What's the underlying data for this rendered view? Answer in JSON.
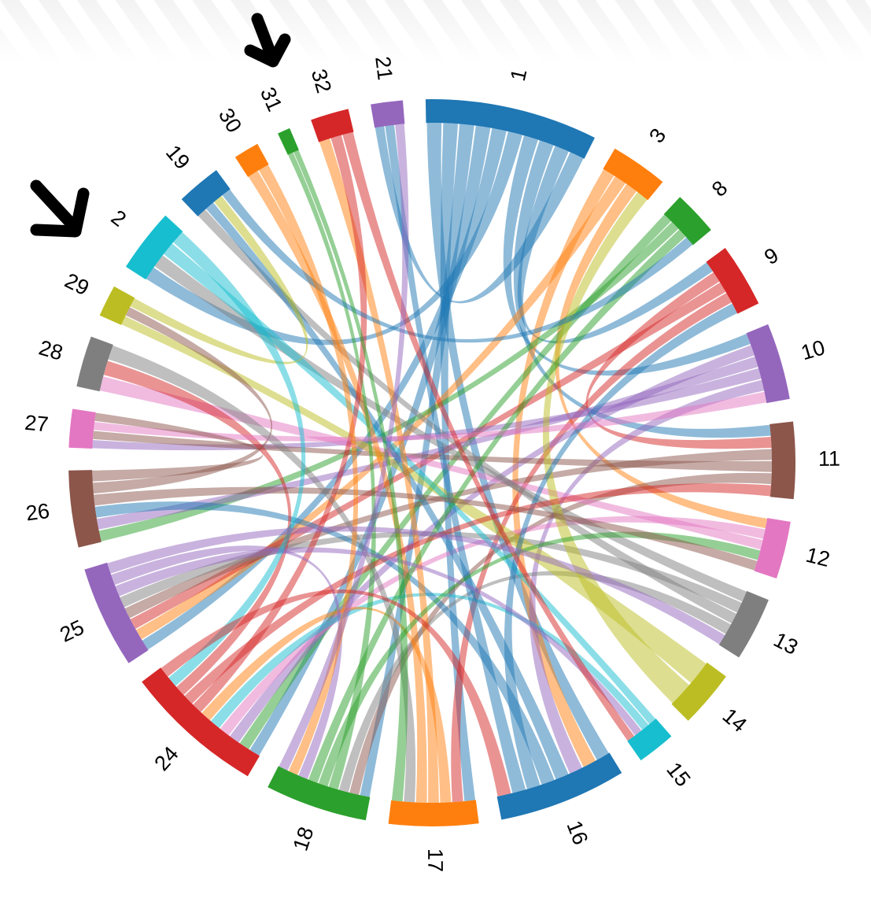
{
  "chart_data": {
    "type": "chord",
    "categories": [
      "1",
      "3",
      "8",
      "9",
      "10",
      "11",
      "12",
      "13",
      "14",
      "15",
      "16",
      "17",
      "18",
      "24",
      "25",
      "26",
      "27",
      "28",
      "29",
      "2",
      "19",
      "30",
      "31",
      "32",
      "21"
    ],
    "values": [
      27,
      9,
      7,
      10,
      12,
      12,
      9,
      10,
      9,
      6,
      20,
      14,
      16,
      22,
      16,
      12,
      6,
      8,
      5,
      10,
      7,
      4,
      2,
      6,
      5
    ],
    "colors": [
      "#1f77b4",
      "#ff7f0e",
      "#2ca02c",
      "#d62728",
      "#9467bd",
      "#8c564b",
      "#e377c2",
      "#7f7f7f",
      "#bcbd22",
      "#17becf"
    ],
    "links": [
      [
        0,
        10
      ],
      [
        0,
        11
      ],
      [
        0,
        12
      ],
      [
        0,
        13
      ],
      [
        0,
        14
      ],
      [
        0,
        19
      ],
      [
        0,
        4
      ],
      [
        0,
        5
      ],
      [
        0,
        3
      ],
      [
        0,
        24
      ],
      [
        1,
        10
      ],
      [
        1,
        14
      ],
      [
        1,
        6
      ],
      [
        2,
        13
      ],
      [
        2,
        15
      ],
      [
        3,
        5
      ],
      [
        3,
        14
      ],
      [
        3,
        11
      ],
      [
        4,
        13
      ],
      [
        4,
        15
      ],
      [
        4,
        16
      ],
      [
        4,
        10
      ],
      [
        5,
        14
      ],
      [
        5,
        16
      ],
      [
        5,
        12
      ],
      [
        6,
        13
      ],
      [
        6,
        17
      ],
      [
        7,
        19
      ],
      [
        7,
        14
      ],
      [
        7,
        20
      ],
      [
        7,
        12
      ],
      [
        8,
        18
      ],
      [
        8,
        1
      ],
      [
        9,
        19
      ],
      [
        9,
        13
      ],
      [
        10,
        20
      ],
      [
        10,
        15
      ],
      [
        10,
        3
      ],
      [
        10,
        24
      ],
      [
        11,
        13
      ],
      [
        11,
        23
      ],
      [
        11,
        21
      ],
      [
        12,
        22
      ],
      [
        12,
        6
      ],
      [
        12,
        2
      ],
      [
        13,
        23
      ],
      [
        13,
        5
      ],
      [
        13,
        17
      ],
      [
        14,
        9
      ],
      [
        14,
        12
      ],
      [
        15,
        6
      ],
      [
        15,
        18
      ],
      [
        16,
        4
      ],
      [
        17,
        11
      ],
      [
        18,
        20
      ],
      [
        19,
        13
      ],
      [
        20,
        2
      ],
      [
        21,
        12
      ],
      [
        22,
        11
      ],
      [
        23,
        9
      ],
      [
        24,
        12
      ],
      [
        13,
        10
      ],
      [
        14,
        7
      ],
      [
        15,
        16
      ]
    ]
  }
}
